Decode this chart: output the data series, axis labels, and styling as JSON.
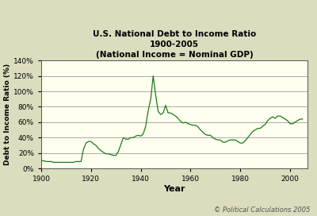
{
  "title_line1": "U.S. National Debt to Income Ratio",
  "title_line2": "1900-2005",
  "title_line3": "(National Income = Nominal GDP)",
  "xlabel": "Year",
  "ylabel": "Debt to Income Ratio (%)",
  "copyright": "© Political Calculations 2005",
  "line_color": "#1a7a1a",
  "plot_bg_color": "#FFFFF0",
  "outer_bg_color": "#DCDCBE",
  "ylim": [
    0,
    140
  ],
  "xlim": [
    1900,
    2007
  ],
  "yticks": [
    0,
    20,
    40,
    60,
    80,
    100,
    120,
    140
  ],
  "xticks": [
    1900,
    1920,
    1940,
    1960,
    1980,
    2000
  ],
  "years": [
    1900,
    1901,
    1902,
    1903,
    1904,
    1905,
    1906,
    1907,
    1908,
    1909,
    1910,
    1911,
    1912,
    1913,
    1914,
    1915,
    1916,
    1917,
    1918,
    1919,
    1920,
    1921,
    1922,
    1923,
    1924,
    1925,
    1926,
    1927,
    1928,
    1929,
    1930,
    1931,
    1932,
    1933,
    1934,
    1935,
    1936,
    1937,
    1938,
    1939,
    1940,
    1941,
    1942,
    1943,
    1944,
    1945,
    1946,
    1947,
    1948,
    1949,
    1950,
    1951,
    1952,
    1953,
    1954,
    1955,
    1956,
    1957,
    1958,
    1959,
    1960,
    1961,
    1962,
    1963,
    1964,
    1965,
    1966,
    1967,
    1968,
    1969,
    1970,
    1971,
    1972,
    1973,
    1974,
    1975,
    1976,
    1977,
    1978,
    1979,
    1980,
    1981,
    1982,
    1983,
    1984,
    1985,
    1986,
    1987,
    1988,
    1989,
    1990,
    1991,
    1992,
    1993,
    1994,
    1995,
    1996,
    1997,
    1998,
    1999,
    2000,
    2001,
    2002,
    2003,
    2004,
    2005
  ],
  "values": [
    10,
    10,
    9,
    9,
    9,
    8,
    8,
    8,
    8,
    8,
    8,
    8,
    8,
    8,
    9,
    9,
    9,
    25,
    33,
    35,
    35,
    32,
    30,
    26,
    23,
    21,
    19,
    19,
    18,
    17,
    17,
    22,
    31,
    40,
    38,
    38,
    40,
    40,
    42,
    43,
    42,
    45,
    55,
    75,
    90,
    120,
    95,
    74,
    70,
    72,
    82,
    72,
    72,
    70,
    68,
    65,
    61,
    59,
    60,
    58,
    57,
    56,
    56,
    54,
    50,
    47,
    44,
    43,
    43,
    40,
    38,
    37,
    37,
    34,
    34,
    36,
    37,
    37,
    37,
    35,
    33,
    33,
    36,
    40,
    44,
    48,
    50,
    52,
    52,
    55,
    57,
    62,
    65,
    67,
    65,
    68,
    68,
    66,
    64,
    62,
    58,
    58,
    60,
    62,
    64,
    64
  ]
}
